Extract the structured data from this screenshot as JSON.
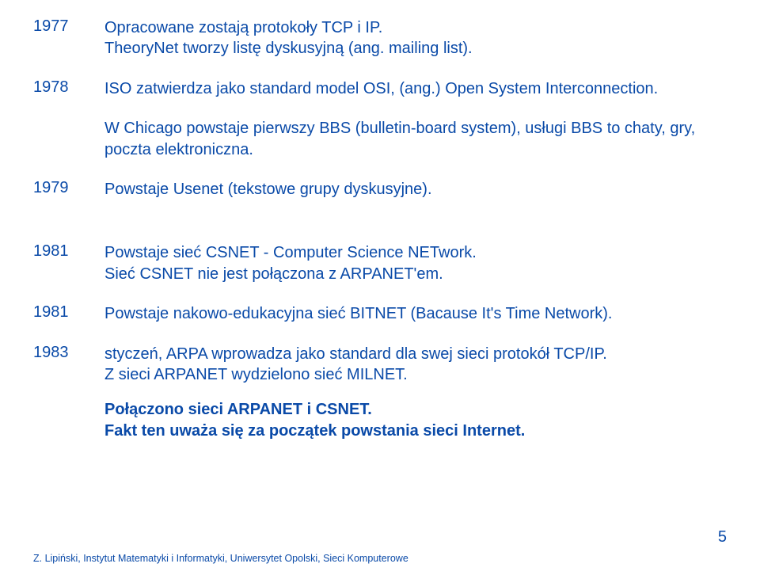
{
  "colors": {
    "text": "#0a4aa8",
    "background": "#ffffff"
  },
  "typography": {
    "body_fontsize_pt": 15,
    "footer_fontsize_pt": 9.5,
    "font_family": "Arial"
  },
  "timeline": {
    "e1977": {
      "year": "1977",
      "line1": "Opracowane zostają protokoły TCP i IP.",
      "line2": "TheoryNet tworzy listę dyskusyjną (ang. mailing list)."
    },
    "e1978": {
      "year": "1978",
      "line1": "ISO zatwierdza jako standard model OSI, (ang.) Open System Interconnection.",
      "line2": "W Chicago powstaje pierwszy BBS (bulletin-board system), usługi BBS to chaty, gry, poczta elektroniczna."
    },
    "e1979": {
      "year": "1979",
      "line1": "Powstaje Usenet (tekstowe grupy dyskusyjne)."
    },
    "e1981a": {
      "year": "1981",
      "line1": "Powstaje sieć CSNET - Computer Science NETwork.",
      "line2": "Sieć CSNET nie jest połączona z ARPANET'em."
    },
    "e1981b": {
      "year": "1981",
      "line1": "Powstaje nakowo-edukacyjna sieć BITNET (Bacause It's Time Network)."
    },
    "e1983": {
      "year": "1983",
      "line1": "styczeń, ARPA wprowadza jako standard dla swej sieci protokół TCP/IP.",
      "line2": "Z sieci ARPANET wydzielono sieć MILNET.",
      "bold1": "Połączono sieci ARPANET i CSNET.",
      "bold2": "Fakt ten uważa się za początek powstania sieci Internet."
    }
  },
  "footer": "Z. Lipiński, Instytut Matematyki i Informatyki, Uniwersytet Opolski,  Sieci Komputerowe",
  "page_number": "5"
}
